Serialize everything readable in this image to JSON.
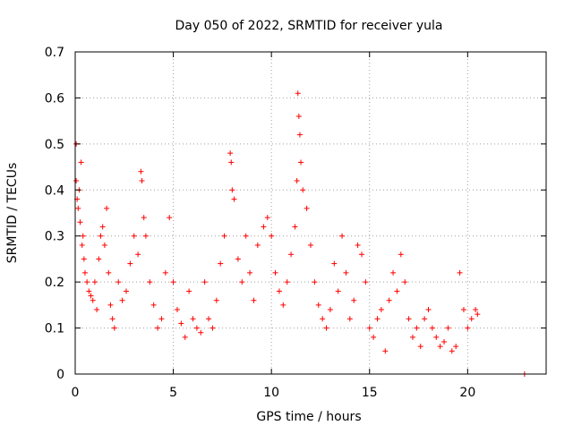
{
  "chart_data": {
    "type": "scatter",
    "title": "Day 050 of 2022, SRMTID for receiver yula",
    "xlabel": "GPS time / hours",
    "ylabel": "SRMTID / TECUs",
    "xlim": [
      0,
      24
    ],
    "ylim": [
      0,
      0.7
    ],
    "xticks": [
      0,
      5,
      10,
      15,
      20
    ],
    "xtick_labels": [
      "0",
      "5",
      "10",
      "15",
      "20"
    ],
    "yticks": [
      0,
      0.1,
      0.2,
      0.3,
      0.4,
      0.5,
      0.6,
      0.7
    ],
    "ytick_labels": [
      "0",
      "0.1",
      "0.2",
      "0.3",
      "0.4",
      "0.5",
      "0.6",
      "0.7"
    ],
    "grid": true,
    "marker": "+",
    "color": "#ff0000",
    "series": [
      {
        "name": "SRMTID",
        "points": [
          [
            0.05,
            0.5
          ],
          [
            0.05,
            0.42
          ],
          [
            0.1,
            0.38
          ],
          [
            0.15,
            0.36
          ],
          [
            0.2,
            0.4
          ],
          [
            0.25,
            0.33
          ],
          [
            0.3,
            0.46
          ],
          [
            0.35,
            0.28
          ],
          [
            0.4,
            0.3
          ],
          [
            0.45,
            0.25
          ],
          [
            0.5,
            0.22
          ],
          [
            0.6,
            0.2
          ],
          [
            0.7,
            0.18
          ],
          [
            0.8,
            0.17
          ],
          [
            0.9,
            0.16
          ],
          [
            1.0,
            0.2
          ],
          [
            1.1,
            0.14
          ],
          [
            1.2,
            0.25
          ],
          [
            1.3,
            0.3
          ],
          [
            1.4,
            0.32
          ],
          [
            1.5,
            0.28
          ],
          [
            1.6,
            0.36
          ],
          [
            1.7,
            0.22
          ],
          [
            1.8,
            0.15
          ],
          [
            1.9,
            0.12
          ],
          [
            2.0,
            0.1
          ],
          [
            2.2,
            0.2
          ],
          [
            2.4,
            0.16
          ],
          [
            2.6,
            0.18
          ],
          [
            2.8,
            0.24
          ],
          [
            3.0,
            0.3
          ],
          [
            3.2,
            0.26
          ],
          [
            3.35,
            0.44
          ],
          [
            3.4,
            0.42
          ],
          [
            3.5,
            0.34
          ],
          [
            3.6,
            0.3
          ],
          [
            3.8,
            0.2
          ],
          [
            4.0,
            0.15
          ],
          [
            4.2,
            0.1
          ],
          [
            4.4,
            0.12
          ],
          [
            4.6,
            0.22
          ],
          [
            4.8,
            0.34
          ],
          [
            5.0,
            0.2
          ],
          [
            5.2,
            0.14
          ],
          [
            5.4,
            0.11
          ],
          [
            5.6,
            0.08
          ],
          [
            5.8,
            0.18
          ],
          [
            6.0,
            0.12
          ],
          [
            6.2,
            0.1
          ],
          [
            6.4,
            0.09
          ],
          [
            6.6,
            0.2
          ],
          [
            6.8,
            0.12
          ],
          [
            7.0,
            0.1
          ],
          [
            7.2,
            0.16
          ],
          [
            7.4,
            0.24
          ],
          [
            7.6,
            0.3
          ],
          [
            7.9,
            0.48
          ],
          [
            7.95,
            0.46
          ],
          [
            8.0,
            0.4
          ],
          [
            8.1,
            0.38
          ],
          [
            8.3,
            0.25
          ],
          [
            8.5,
            0.2
          ],
          [
            8.7,
            0.3
          ],
          [
            8.9,
            0.22
          ],
          [
            9.1,
            0.16
          ],
          [
            9.3,
            0.28
          ],
          [
            9.6,
            0.32
          ],
          [
            9.8,
            0.34
          ],
          [
            10.0,
            0.3
          ],
          [
            10.2,
            0.22
          ],
          [
            10.4,
            0.18
          ],
          [
            10.6,
            0.15
          ],
          [
            10.8,
            0.2
          ],
          [
            11.0,
            0.26
          ],
          [
            11.2,
            0.32
          ],
          [
            11.3,
            0.42
          ],
          [
            11.35,
            0.61
          ],
          [
            11.4,
            0.56
          ],
          [
            11.45,
            0.52
          ],
          [
            11.5,
            0.46
          ],
          [
            11.6,
            0.4
          ],
          [
            11.8,
            0.36
          ],
          [
            12.0,
            0.28
          ],
          [
            12.2,
            0.2
          ],
          [
            12.4,
            0.15
          ],
          [
            12.6,
            0.12
          ],
          [
            12.8,
            0.1
          ],
          [
            13.0,
            0.14
          ],
          [
            13.2,
            0.24
          ],
          [
            13.4,
            0.18
          ],
          [
            13.6,
            0.3
          ],
          [
            13.8,
            0.22
          ],
          [
            14.0,
            0.12
          ],
          [
            14.2,
            0.16
          ],
          [
            14.4,
            0.28
          ],
          [
            14.6,
            0.26
          ],
          [
            14.8,
            0.2
          ],
          [
            15.0,
            0.1
          ],
          [
            15.2,
            0.08
          ],
          [
            15.4,
            0.12
          ],
          [
            15.6,
            0.14
          ],
          [
            15.8,
            0.05
          ],
          [
            16.0,
            0.16
          ],
          [
            16.2,
            0.22
          ],
          [
            16.4,
            0.18
          ],
          [
            16.6,
            0.26
          ],
          [
            16.8,
            0.2
          ],
          [
            17.0,
            0.12
          ],
          [
            17.2,
            0.08
          ],
          [
            17.4,
            0.1
          ],
          [
            17.6,
            0.06
          ],
          [
            17.8,
            0.12
          ],
          [
            18.0,
            0.14
          ],
          [
            18.2,
            0.1
          ],
          [
            18.4,
            0.08
          ],
          [
            18.6,
            0.06
          ],
          [
            18.8,
            0.07
          ],
          [
            19.0,
            0.1
          ],
          [
            19.2,
            0.05
          ],
          [
            19.4,
            0.06
          ],
          [
            19.6,
            0.22
          ],
          [
            19.8,
            0.14
          ],
          [
            20.0,
            0.1
          ],
          [
            20.2,
            0.12
          ],
          [
            20.4,
            0.14
          ],
          [
            20.5,
            0.13
          ],
          [
            22.9,
            0.0
          ]
        ]
      }
    ]
  }
}
